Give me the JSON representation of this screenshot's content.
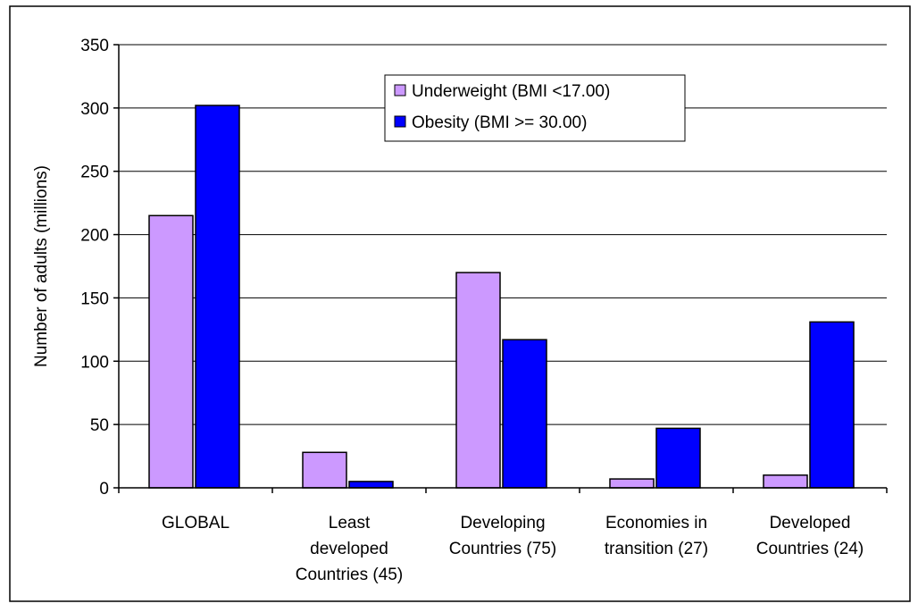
{
  "chart_data": {
    "type": "bar",
    "title": "",
    "xlabel": "",
    "ylabel": "Number of adults (millions)",
    "ylim": [
      0,
      350
    ],
    "yticks": [
      0,
      50,
      100,
      150,
      200,
      250,
      300,
      350
    ],
    "grid": true,
    "legend_position": "top-center",
    "categories": [
      [
        "GLOBAL"
      ],
      [
        "Least",
        "developed",
        "Countries (45)"
      ],
      [
        "Developing",
        "Countries (75)"
      ],
      [
        "Economies in",
        "transition (27)"
      ],
      [
        "Developed",
        "Countries (24)"
      ]
    ],
    "series": [
      {
        "name": "Underweight (BMI <17.00)",
        "color": "#cc99ff",
        "values": [
          215,
          28,
          170,
          7,
          10
        ]
      },
      {
        "name": "Obesity (BMI >= 30.00)",
        "color": "#0000ff",
        "values": [
          302,
          5,
          117,
          47,
          131
        ]
      }
    ]
  }
}
